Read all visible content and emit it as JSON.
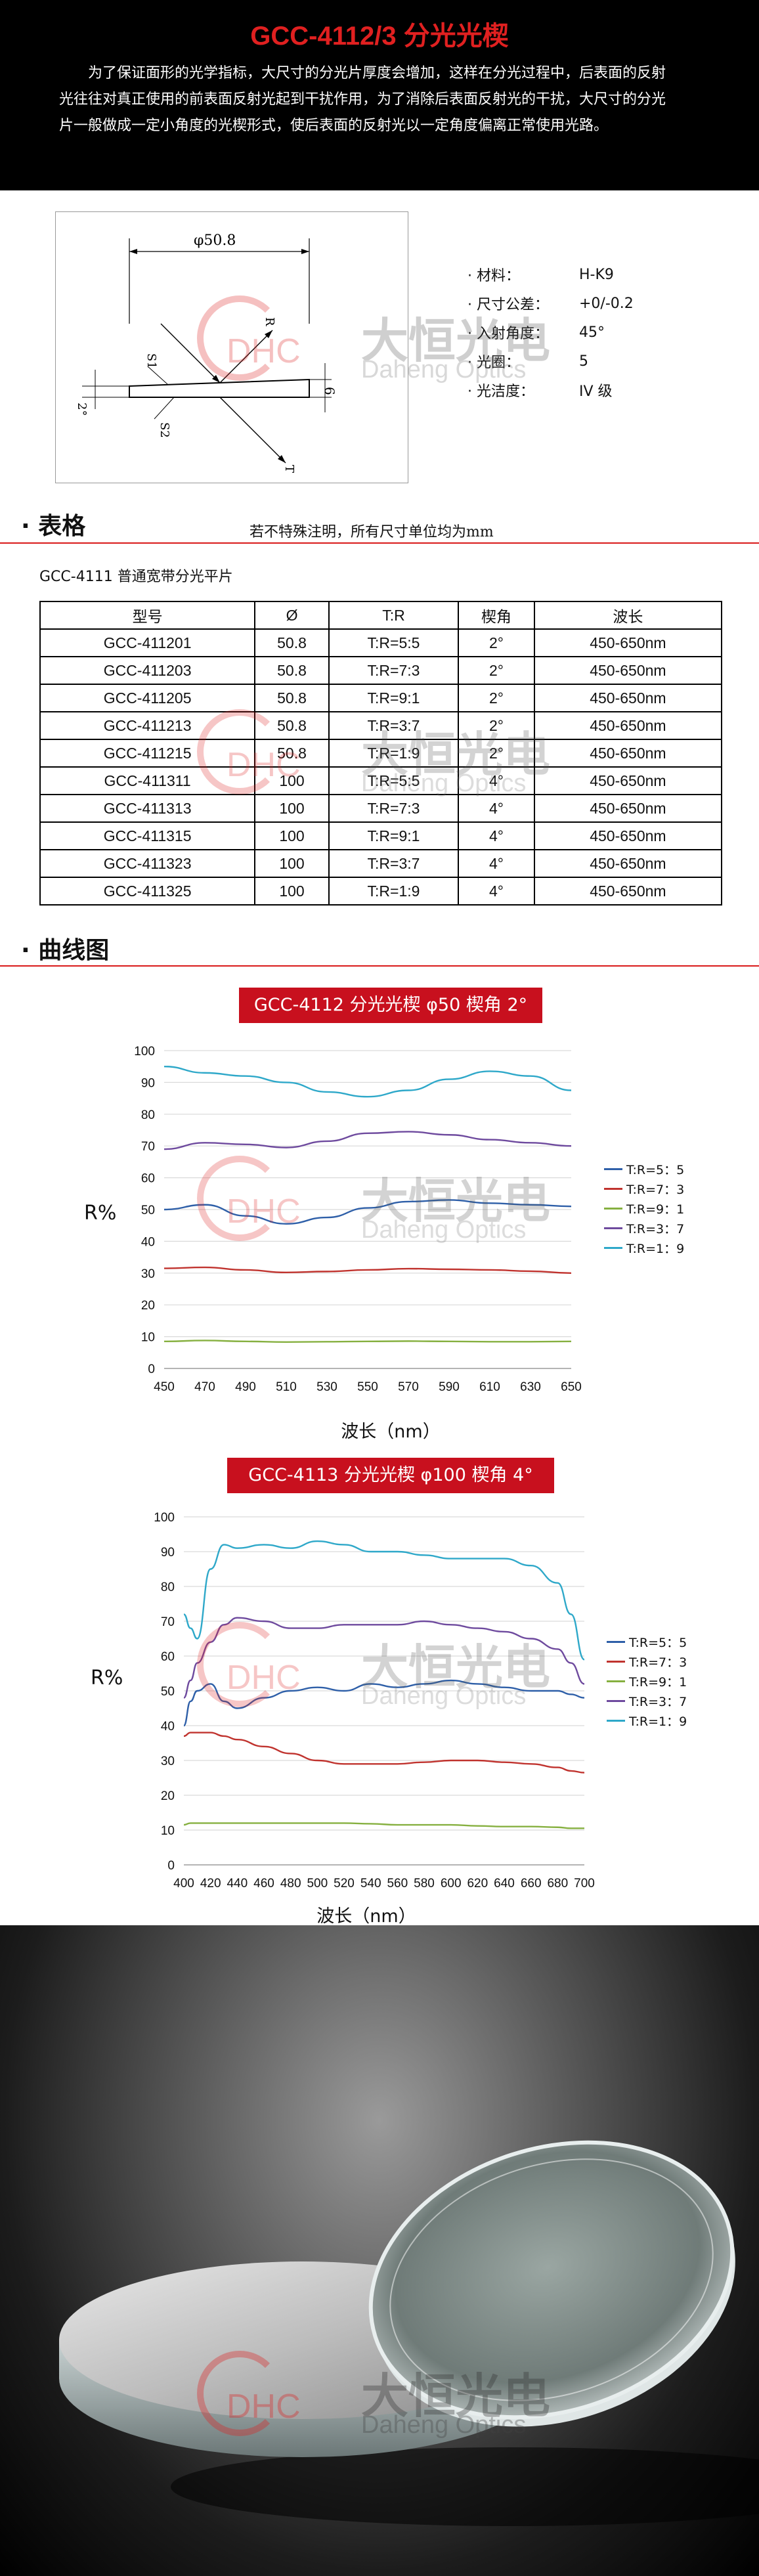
{
  "header": {
    "title": "GCC-4112/3 分光光楔",
    "intro": "为了保证面形的光学指标，大尺寸的分光片厚度会增加，这样在分光过程中，后表面的反射光往往对真正使用的前表面反射光起到干扰作用，为了消除后表面反射光的干扰，大尺寸的分光片一般做成一定小角度的光楔形式，使后表面的反射光以一定角度偏离正常使用光路。"
  },
  "diagram": {
    "dimension": "φ50.8",
    "label_s1": "S1",
    "label_s2": "S2",
    "label_r": "R",
    "label_t": "T",
    "label_6": "6",
    "label_angle": "2°"
  },
  "specs": [
    {
      "key": "· 材料：",
      "value": "H-K9"
    },
    {
      "key": "· 尺寸公差：",
      "value": "+0/-0.2"
    },
    {
      "key": "· 入射角度：",
      "value": "45°"
    },
    {
      "key": "· 光圈：",
      "value": "5"
    },
    {
      "key": "· 光洁度：",
      "value": "IV 级"
    }
  ],
  "table_section": {
    "title": "· 表格",
    "note": "若不特殊注明，所有尺寸单位均为mm",
    "subtitle": "GCC-4111 普通宽带分光平片",
    "headers": [
      "型号",
      "Ø",
      "T:R",
      "楔角",
      "波长"
    ],
    "rows": [
      [
        "GCC-411201",
        "50.8",
        "T:R=5:5",
        "2°",
        "450-650nm"
      ],
      [
        "GCC-411203",
        "50.8",
        "T:R=7:3",
        "2°",
        "450-650nm"
      ],
      [
        "GCC-411205",
        "50.8",
        "T:R=9:1",
        "2°",
        "450-650nm"
      ],
      [
        "GCC-411213",
        "50.8",
        "T:R=3:7",
        "2°",
        "450-650nm"
      ],
      [
        "GCC-411215",
        "50.8",
        "T:R=1:9",
        "2°",
        "450-650nm"
      ],
      [
        "GCC-411311",
        "100",
        "T:R=5:5",
        "4°",
        "450-650nm"
      ],
      [
        "GCC-411313",
        "100",
        "T:R=7:3",
        "4°",
        "450-650nm"
      ],
      [
        "GCC-411315",
        "100",
        "T:R=9:1",
        "4°",
        "450-650nm"
      ],
      [
        "GCC-411323",
        "100",
        "T:R=3:7",
        "4°",
        "450-650nm"
      ],
      [
        "GCC-411325",
        "100",
        "T:R=1:9",
        "4°",
        "450-650nm"
      ]
    ]
  },
  "curve_section": {
    "title": "· 曲线图"
  },
  "watermark": {
    "logo": "DHC",
    "cn": "大恒光电",
    "en": "Daheng Optics"
  },
  "colors": {
    "accent_red": "#c8101e",
    "series": [
      "#2e5fa8",
      "#c0332e",
      "#86b040",
      "#6e4a9e",
      "#2ea8c9"
    ]
  },
  "chart_data": [
    {
      "type": "line",
      "title": "GCC-4112 分光光楔  φ50 楔角  2°",
      "xlabel": "波长（nm）",
      "ylabel": "R%",
      "xlim": [
        450,
        650
      ],
      "ylim": [
        0,
        100
      ],
      "xticks": [
        450,
        470,
        490,
        510,
        530,
        550,
        570,
        590,
        610,
        630,
        650
      ],
      "yticks": [
        0,
        10,
        20,
        30,
        40,
        50,
        60,
        70,
        80,
        90,
        100
      ],
      "grid": true,
      "legend": "right",
      "x": [
        450,
        470,
        490,
        510,
        530,
        550,
        570,
        590,
        610,
        630,
        650
      ],
      "series": [
        {
          "name": "T:R=5：5",
          "values": [
            50,
            51.5,
            48,
            45.5,
            47.5,
            50.5,
            52.5,
            53,
            52,
            51.5,
            51
          ]
        },
        {
          "name": "T:R=7：3",
          "values": [
            31.5,
            31.8,
            31,
            30.2,
            30.5,
            31,
            31.4,
            31.2,
            31,
            30.6,
            30
          ]
        },
        {
          "name": "T:R=9：1",
          "values": [
            8.5,
            8.8,
            8.5,
            8.3,
            8.4,
            8.5,
            8.6,
            8.5,
            8.4,
            8.4,
            8.5
          ]
        },
        {
          "name": "T:R=3：7",
          "values": [
            69,
            71,
            70.5,
            69.5,
            71.5,
            74,
            74.5,
            73.5,
            72,
            71,
            70
          ]
        },
        {
          "name": "T:R=1：9",
          "values": [
            95,
            93,
            92,
            90,
            87,
            85.5,
            87.5,
            91,
            93.5,
            92,
            87.5
          ]
        }
      ]
    },
    {
      "type": "line",
      "title": "GCC-4113 分光光楔   φ100 楔角  4°",
      "xlabel": "波长（nm）",
      "ylabel": "R%",
      "xlim": [
        400,
        700
      ],
      "ylim": [
        0,
        100
      ],
      "xticks": [
        400,
        420,
        440,
        460,
        480,
        500,
        520,
        540,
        560,
        580,
        600,
        620,
        640,
        660,
        680,
        700
      ],
      "yticks": [
        0,
        10,
        20,
        30,
        40,
        50,
        60,
        70,
        80,
        90,
        100
      ],
      "grid": true,
      "legend": "right",
      "x": [
        400,
        405,
        410,
        420,
        430,
        440,
        460,
        480,
        500,
        520,
        540,
        560,
        580,
        600,
        620,
        640,
        660,
        680,
        690,
        700
      ],
      "series": [
        {
          "name": "T:R=5：5",
          "values": [
            40,
            47,
            50,
            52,
            47,
            45,
            48,
            50,
            51,
            50,
            52,
            51,
            52,
            53,
            52,
            51,
            50,
            50,
            49,
            48
          ]
        },
        {
          "name": "T:R=7：3",
          "values": [
            37,
            38,
            38,
            38,
            37,
            36,
            34,
            32,
            30,
            29,
            29,
            29,
            29.5,
            30,
            30,
            29.5,
            29,
            28,
            27,
            26.5
          ]
        },
        {
          "name": "T:R=9：1",
          "values": [
            11.5,
            12,
            12,
            12,
            12,
            12,
            12,
            12,
            12,
            12,
            11.8,
            11.5,
            11.5,
            11.5,
            11.2,
            11,
            11,
            10.8,
            10.5,
            10.5
          ]
        },
        {
          "name": "T:R=3：7",
          "values": [
            48,
            53,
            58,
            64,
            69,
            71,
            70,
            68,
            68,
            69,
            69,
            69,
            70,
            69,
            68,
            67,
            65,
            62,
            58,
            52
          ]
        },
        {
          "name": "T:R=1：9",
          "values": [
            72,
            68,
            65,
            85,
            92,
            91,
            92,
            91,
            93,
            92,
            90,
            90,
            89,
            88,
            88,
            88,
            86,
            81,
            72,
            59
          ]
        }
      ]
    }
  ],
  "photo": {
    "caption": ""
  }
}
